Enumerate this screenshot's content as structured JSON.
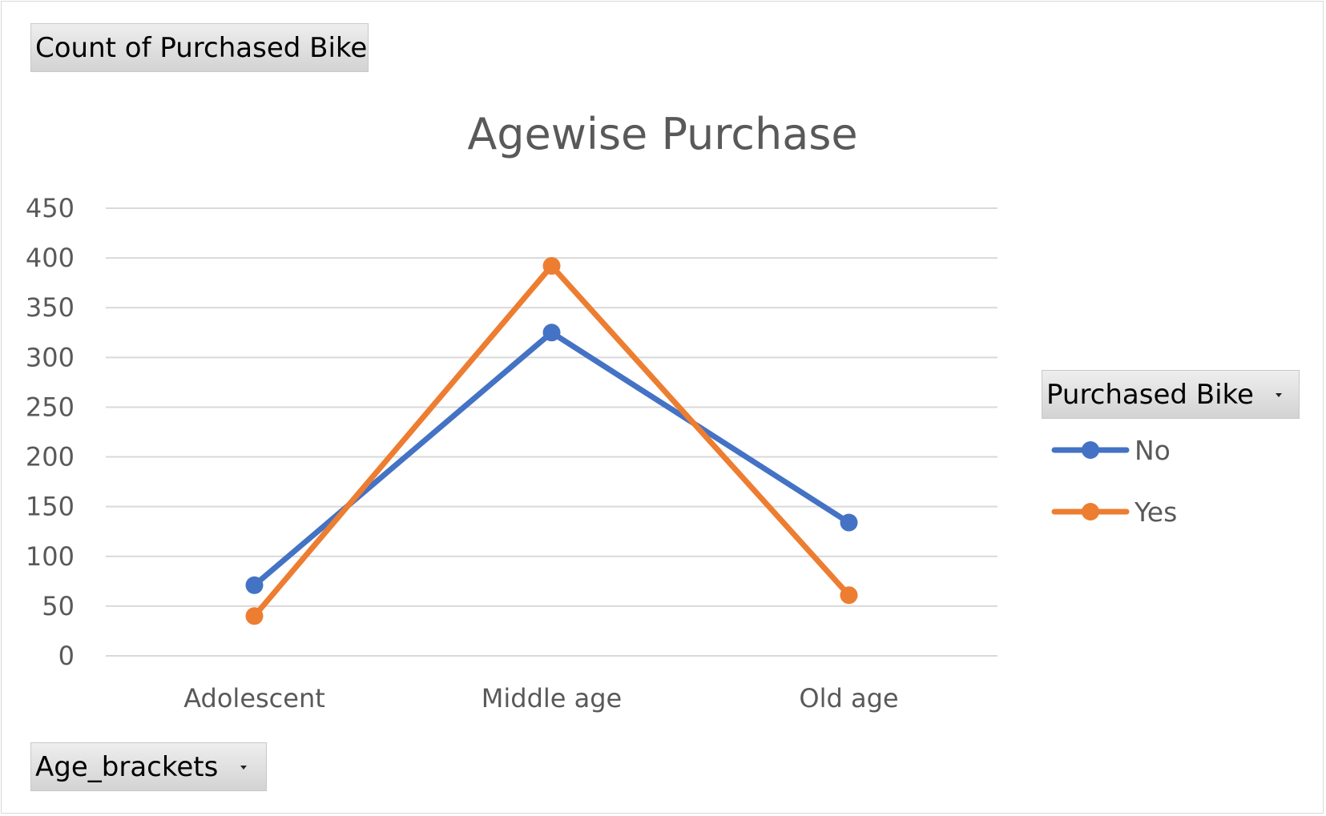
{
  "pivot": {
    "value_field": "Count of Purchased Bike",
    "row_field": "Age_brackets",
    "legend_field": "Purchased Bike"
  },
  "colors": {
    "No": "#4472c4",
    "Yes": "#ed7d31",
    "grid": "#d9d9d9",
    "text": "#595959"
  },
  "chart_data": {
    "type": "line",
    "title": "Agewise Purchase",
    "categories": [
      "Adolescent",
      "Middle age",
      "Old age"
    ],
    "series": [
      {
        "name": "No",
        "values": [
          71,
          325,
          134
        ]
      },
      {
        "name": "Yes",
        "values": [
          40,
          392,
          61
        ]
      }
    ],
    "ylim": [
      0,
      450
    ],
    "yticks": [
      0,
      50,
      100,
      150,
      200,
      250,
      300,
      350,
      400,
      450
    ],
    "grid": true,
    "legend_position": "right"
  }
}
